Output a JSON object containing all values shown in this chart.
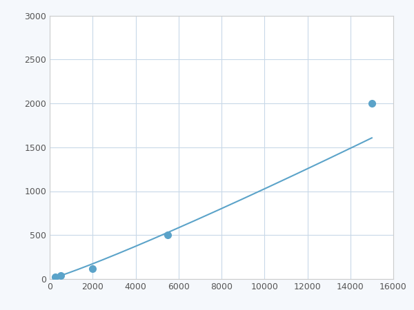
{
  "x": [
    250,
    500,
    2000,
    5500,
    15000
  ],
  "y": [
    20,
    40,
    120,
    500,
    2000
  ],
  "line_color": "#5ba3c9",
  "marker_color": "#5ba3c9",
  "marker_size": 7,
  "linewidth": 1.5,
  "xlim": [
    0,
    16000
  ],
  "ylim": [
    0,
    3000
  ],
  "xticks": [
    0,
    2000,
    4000,
    6000,
    8000,
    10000,
    12000,
    14000,
    16000
  ],
  "yticks": [
    0,
    500,
    1000,
    1500,
    2000,
    2500,
    3000
  ],
  "grid_color": "#c8d8e8",
  "background_color": "#ffffff",
  "spine_color": "#cccccc",
  "figure_facecolor": "#f5f8fc"
}
